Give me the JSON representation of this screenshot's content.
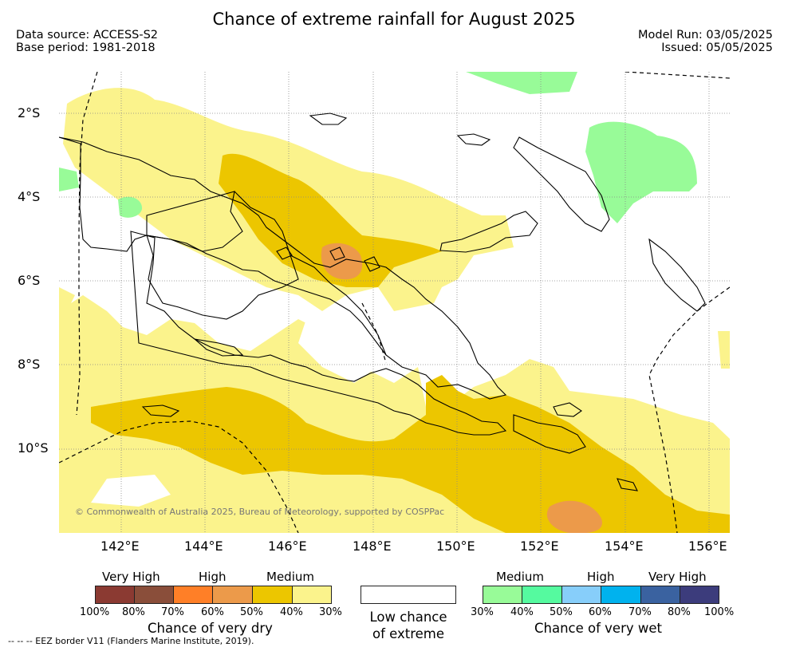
{
  "title": "Chance of extreme rainfall for August 2025",
  "meta": {
    "data_source": "Data source: ACCESS-S2",
    "base_period": "Base period: 1981-2018",
    "model_run": "Model Run: 03/05/2025",
    "issued": "Issued: 05/05/2025"
  },
  "map": {
    "credit": "© Commonwealth of Australia 2025, Bureau of Meteorology, supported by COSPPac",
    "lat_labels": [
      "2°S",
      "4°S",
      "6°S",
      "8°S",
      "10°S"
    ],
    "lon_labels": [
      "142°E",
      "144°E",
      "146°E",
      "148°E",
      "150°E",
      "152°E",
      "154°E",
      "156°E"
    ],
    "extent": {
      "lon": [
        140.5,
        156.5
      ],
      "lat": [
        -12,
        -1
      ]
    },
    "colors": {
      "land_outline": "#000000",
      "grid": "#888888",
      "eez": "#000000"
    }
  },
  "legend": {
    "dry": {
      "title": "Chance of very dry",
      "levels": [
        "Very High",
        "High",
        "Medium"
      ],
      "percents": [
        "100%",
        "80%",
        "70%",
        "60%",
        "50%",
        "40%",
        "30%"
      ],
      "colors": [
        "#8b3a32",
        "#8a4e3a",
        "#ff7f27",
        "#ec9a4a",
        "#ecc600",
        "#fbf38c"
      ]
    },
    "low": {
      "line1": "Low chance",
      "line2": "of extreme"
    },
    "wet": {
      "title": "Chance of very wet",
      "levels": [
        "Medium",
        "High",
        "Very High"
      ],
      "percents": [
        "30%",
        "40%",
        "50%",
        "60%",
        "70%",
        "80%",
        "100%"
      ],
      "colors": [
        "#98fb98",
        "#55fa9f",
        "#87cefa",
        "#00b2ee",
        "#3a62a0",
        "#3c3c7c"
      ]
    }
  },
  "footnote": "--  --  -- EEZ border V11 (Flanders Marine Institute, 2019)."
}
